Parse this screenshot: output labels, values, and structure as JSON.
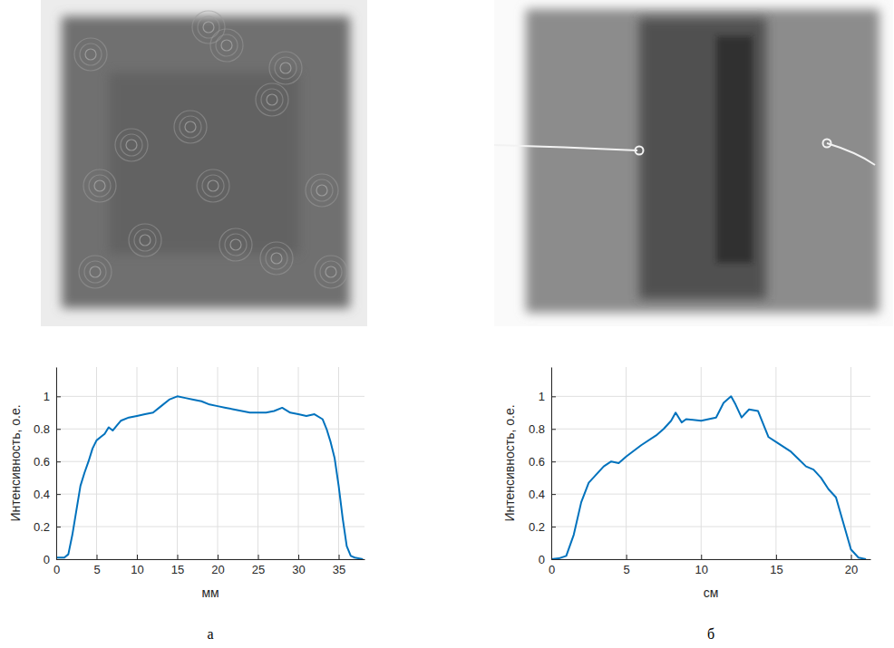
{
  "chart_data": [
    {
      "type": "line",
      "panel_label": "а",
      "y_label": "Интенсивность, о.е.",
      "x_label": "мм",
      "color": "#0072bd",
      "grid": true,
      "xlim": [
        0,
        38.2
      ],
      "ylim": [
        0,
        1.18
      ],
      "xticks": [
        0,
        5,
        10,
        15,
        20,
        25,
        30,
        35
      ],
      "yticks": [
        0,
        0.2,
        0.4,
        0.6,
        0.8,
        1
      ],
      "x": [
        0,
        1,
        1.5,
        2,
        2.5,
        3,
        3.5,
        4,
        4.5,
        5,
        5.5,
        6,
        6.5,
        7,
        7.5,
        8,
        9,
        10,
        11,
        12,
        13,
        14,
        15,
        16,
        17,
        18,
        19,
        20,
        21,
        22,
        23,
        24,
        25,
        26,
        27,
        28,
        29,
        30,
        31,
        32,
        33,
        33.5,
        34,
        34.5,
        35,
        35.5,
        36,
        36.5,
        37,
        38
      ],
      "values": [
        0.01,
        0.01,
        0.03,
        0.15,
        0.3,
        0.45,
        0.53,
        0.6,
        0.68,
        0.73,
        0.75,
        0.77,
        0.81,
        0.79,
        0.82,
        0.85,
        0.87,
        0.88,
        0.89,
        0.9,
        0.94,
        0.98,
        1.0,
        0.99,
        0.98,
        0.97,
        0.95,
        0.94,
        0.93,
        0.92,
        0.91,
        0.9,
        0.9,
        0.9,
        0.91,
        0.93,
        0.9,
        0.89,
        0.88,
        0.89,
        0.86,
        0.8,
        0.72,
        0.62,
        0.45,
        0.25,
        0.08,
        0.02,
        0.01,
        0.0
      ]
    },
    {
      "type": "line",
      "panel_label": "б",
      "y_label": "Интенсивность, о.е.",
      "x_label": "см",
      "color": "#0072bd",
      "grid": true,
      "xlim": [
        0,
        21.3
      ],
      "ylim": [
        0,
        1.18
      ],
      "xticks": [
        0,
        5,
        10,
        15,
        20
      ],
      "yticks": [
        0,
        0.2,
        0.4,
        0.6,
        0.8,
        1
      ],
      "x": [
        0,
        0.5,
        1,
        1.5,
        2,
        2.5,
        3,
        3.5,
        4,
        4.5,
        5,
        6,
        7,
        7.5,
        8,
        8.3,
        8.7,
        9,
        10,
        11,
        11.5,
        12,
        12.3,
        12.7,
        13.2,
        13.8,
        14.5,
        15,
        16,
        17,
        17.5,
        18,
        18.5,
        19,
        19.5,
        20,
        20.5,
        21
      ],
      "values": [
        0.0,
        0.005,
        0.02,
        0.15,
        0.35,
        0.47,
        0.52,
        0.57,
        0.6,
        0.59,
        0.63,
        0.7,
        0.76,
        0.8,
        0.85,
        0.9,
        0.84,
        0.86,
        0.85,
        0.87,
        0.96,
        1.0,
        0.95,
        0.87,
        0.92,
        0.91,
        0.75,
        0.72,
        0.66,
        0.57,
        0.55,
        0.5,
        0.43,
        0.38,
        0.22,
        0.06,
        0.01,
        0.0
      ]
    }
  ]
}
